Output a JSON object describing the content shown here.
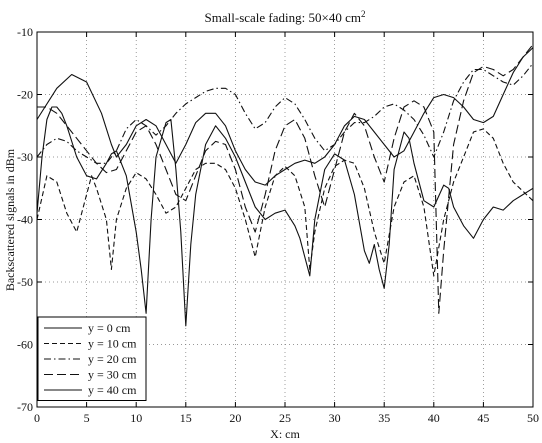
{
  "chart_data": {
    "type": "line",
    "title": "Small-scale fading: 50×40 cm",
    "title_sup": "2",
    "xlabel": "X: cm",
    "ylabel": "Backscattered signals in dBm",
    "xlim": [
      0,
      50
    ],
    "ylim": [
      -70,
      -10
    ],
    "xticks": [
      0,
      5,
      10,
      15,
      20,
      25,
      30,
      35,
      40,
      45,
      50
    ],
    "yticks": [
      -70,
      -60,
      -50,
      -40,
      -30,
      -20,
      -10
    ],
    "grid": true,
    "legend_position": "bottom-left",
    "series": [
      {
        "name": "y = 0 cm",
        "dash": "solid",
        "points": [
          [
            0,
            -24
          ],
          [
            2,
            -19
          ],
          [
            3.5,
            -16.8
          ],
          [
            5,
            -18
          ],
          [
            6.5,
            -23
          ],
          [
            7.5,
            -28
          ],
          [
            8,
            -30
          ],
          [
            9,
            -28
          ],
          [
            10,
            -25
          ],
          [
            11,
            -24
          ],
          [
            12,
            -25
          ],
          [
            13,
            -28
          ],
          [
            14,
            -31
          ],
          [
            15,
            -28
          ],
          [
            16,
            -24.5
          ],
          [
            17,
            -23
          ],
          [
            18,
            -23
          ],
          [
            19,
            -25
          ],
          [
            20,
            -29
          ],
          [
            21,
            -32
          ],
          [
            22,
            -34
          ],
          [
            23,
            -34.5
          ],
          [
            24,
            -33
          ],
          [
            25,
            -32
          ],
          [
            26,
            -31
          ],
          [
            27,
            -30.5
          ],
          [
            28,
            -31
          ],
          [
            29,
            -30
          ],
          [
            30,
            -28
          ],
          [
            31,
            -25
          ],
          [
            32,
            -23.5
          ],
          [
            33,
            -24
          ],
          [
            34,
            -26
          ],
          [
            35,
            -28
          ],
          [
            36,
            -30
          ],
          [
            37,
            -29
          ],
          [
            38,
            -26
          ],
          [
            39,
            -23
          ],
          [
            40,
            -20.5
          ],
          [
            41,
            -20
          ],
          [
            42,
            -20.5
          ],
          [
            43,
            -22
          ],
          [
            44,
            -24
          ],
          [
            45,
            -24.5
          ],
          [
            46,
            -23.5
          ],
          [
            47,
            -20
          ],
          [
            48,
            -16.5
          ],
          [
            49,
            -14
          ],
          [
            50,
            -12.5
          ]
        ]
      },
      {
        "name": "y = 10 cm",
        "dash": "dashed-short",
        "points": [
          [
            0,
            -40
          ],
          [
            1,
            -33
          ],
          [
            2,
            -34
          ],
          [
            3,
            -39
          ],
          [
            4,
            -42
          ],
          [
            5,
            -36
          ],
          [
            5.5,
            -33
          ],
          [
            6,
            -35
          ],
          [
            7,
            -40
          ],
          [
            7.5,
            -48
          ],
          [
            8,
            -40
          ],
          [
            9,
            -35
          ],
          [
            10,
            -32.5
          ],
          [
            11,
            -33.5
          ],
          [
            12,
            -36
          ],
          [
            13,
            -39
          ],
          [
            14,
            -38
          ],
          [
            15,
            -35
          ],
          [
            16,
            -32
          ],
          [
            17,
            -31
          ],
          [
            18,
            -31
          ],
          [
            19,
            -32
          ],
          [
            20,
            -35
          ],
          [
            21,
            -40
          ],
          [
            22,
            -46
          ],
          [
            23,
            -38
          ],
          [
            24,
            -33
          ],
          [
            25,
            -31.5
          ],
          [
            26,
            -33
          ],
          [
            27,
            -38
          ],
          [
            27.5,
            -48
          ],
          [
            28,
            -42
          ],
          [
            29,
            -35
          ],
          [
            30,
            -31.5
          ],
          [
            31,
            -30.5
          ],
          [
            32,
            -31
          ],
          [
            33,
            -35
          ],
          [
            34,
            -42
          ],
          [
            35,
            -47
          ],
          [
            36,
            -38
          ],
          [
            37,
            -34
          ],
          [
            38,
            -33
          ],
          [
            39,
            -38
          ],
          [
            40,
            -49
          ],
          [
            41,
            -40
          ],
          [
            42,
            -34
          ],
          [
            43,
            -30
          ],
          [
            44,
            -26
          ],
          [
            45,
            -25.5
          ],
          [
            46,
            -27
          ],
          [
            47,
            -31
          ],
          [
            48,
            -34
          ],
          [
            49,
            -35.5
          ],
          [
            50,
            -37
          ]
        ]
      },
      {
        "name": "y = 20 cm",
        "dash": "dash-dot",
        "points": [
          [
            0,
            -30
          ],
          [
            1,
            -28
          ],
          [
            2,
            -27
          ],
          [
            3,
            -27.5
          ],
          [
            4,
            -29
          ],
          [
            5,
            -30
          ],
          [
            6,
            -31
          ],
          [
            7,
            -31
          ],
          [
            8,
            -29
          ],
          [
            9,
            -25.5
          ],
          [
            10,
            -24
          ],
          [
            11,
            -25
          ],
          [
            12,
            -26.5
          ],
          [
            13,
            -25
          ],
          [
            14,
            -23
          ],
          [
            15,
            -21.5
          ],
          [
            16,
            -20.5
          ],
          [
            17,
            -19.5
          ],
          [
            18,
            -19
          ],
          [
            19,
            -19
          ],
          [
            20,
            -20
          ],
          [
            21,
            -23
          ],
          [
            22,
            -25.5
          ],
          [
            23,
            -24.5
          ],
          [
            24,
            -22
          ],
          [
            25,
            -20.5
          ],
          [
            26,
            -21.5
          ],
          [
            27,
            -24
          ],
          [
            28,
            -27
          ],
          [
            29,
            -29
          ],
          [
            30,
            -28
          ],
          [
            31,
            -26
          ],
          [
            32,
            -24.5
          ],
          [
            33,
            -24.5
          ],
          [
            34,
            -23.5
          ],
          [
            35,
            -22
          ],
          [
            36,
            -21.5
          ],
          [
            37,
            -22.5
          ],
          [
            38,
            -24
          ],
          [
            39,
            -26.5
          ],
          [
            40,
            -30
          ],
          [
            41,
            -26
          ],
          [
            42,
            -21
          ],
          [
            43,
            -18
          ],
          [
            44,
            -16
          ],
          [
            45,
            -16
          ],
          [
            46,
            -17
          ],
          [
            47,
            -18
          ],
          [
            48,
            -18.5
          ],
          [
            49,
            -17
          ],
          [
            50,
            -15
          ]
        ]
      },
      {
        "name": "y = 30 cm",
        "dash": "dashed-long",
        "points": [
          [
            0,
            -22
          ],
          [
            1,
            -22
          ],
          [
            2,
            -23
          ],
          [
            3,
            -25
          ],
          [
            4,
            -27
          ],
          [
            5,
            -29
          ],
          [
            6,
            -31
          ],
          [
            7,
            -32.5
          ],
          [
            8,
            -32
          ],
          [
            9,
            -29
          ],
          [
            10,
            -26
          ],
          [
            11,
            -25
          ],
          [
            12,
            -28
          ],
          [
            13,
            -32
          ],
          [
            14,
            -36
          ],
          [
            15,
            -37
          ],
          [
            16,
            -33
          ],
          [
            17,
            -29
          ],
          [
            18,
            -27.5
          ],
          [
            19,
            -28
          ],
          [
            20,
            -32
          ],
          [
            21,
            -38
          ],
          [
            22,
            -42
          ],
          [
            23,
            -36
          ],
          [
            24,
            -29
          ],
          [
            25,
            -25
          ],
          [
            26,
            -24
          ],
          [
            27,
            -27
          ],
          [
            28,
            -33
          ],
          [
            29,
            -38
          ],
          [
            30,
            -32
          ],
          [
            31,
            -26
          ],
          [
            32,
            -23
          ],
          [
            33,
            -25
          ],
          [
            34,
            -30
          ],
          [
            35,
            -34
          ],
          [
            36,
            -27
          ],
          [
            37,
            -22
          ],
          [
            38,
            -21
          ],
          [
            39,
            -22
          ],
          [
            40,
            -26
          ],
          [
            40.5,
            -55
          ],
          [
            41,
            -45
          ],
          [
            42,
            -28
          ],
          [
            43,
            -21
          ],
          [
            44,
            -16.5
          ],
          [
            45,
            -15.5
          ],
          [
            46,
            -16
          ],
          [
            47,
            -17
          ],
          [
            48,
            -16
          ],
          [
            49,
            -14
          ],
          [
            50,
            -12
          ]
        ]
      },
      {
        "name": "y = 40 cm",
        "dash": "solid",
        "points": [
          [
            0,
            -39
          ],
          [
            0.5,
            -30
          ],
          [
            1,
            -24
          ],
          [
            1.5,
            -22
          ],
          [
            2,
            -22
          ],
          [
            2.5,
            -23
          ],
          [
            3,
            -25
          ],
          [
            4,
            -30
          ],
          [
            5,
            -33
          ],
          [
            6,
            -33.5
          ],
          [
            7,
            -31
          ],
          [
            7.5,
            -29.5
          ],
          [
            8,
            -29
          ],
          [
            9,
            -33
          ],
          [
            10,
            -42
          ],
          [
            10.5,
            -48
          ],
          [
            11,
            -55
          ],
          [
            11.5,
            -40
          ],
          [
            12,
            -30
          ],
          [
            13,
            -24.5
          ],
          [
            13.5,
            -24
          ],
          [
            14,
            -32
          ],
          [
            14.5,
            -42
          ],
          [
            15,
            -57
          ],
          [
            15.5,
            -44
          ],
          [
            16,
            -36
          ],
          [
            17,
            -28
          ],
          [
            18,
            -25
          ],
          [
            19,
            -27
          ],
          [
            20,
            -30
          ],
          [
            21,
            -34
          ],
          [
            22,
            -38
          ],
          [
            23,
            -40
          ],
          [
            24,
            -39
          ],
          [
            25,
            -38.5
          ],
          [
            26,
            -41
          ],
          [
            26.5,
            -43
          ],
          [
            27,
            -46
          ],
          [
            27.5,
            -49
          ],
          [
            28,
            -40
          ],
          [
            29,
            -32
          ],
          [
            30,
            -29.5
          ],
          [
            31,
            -30.5
          ],
          [
            32,
            -36
          ],
          [
            33,
            -45
          ],
          [
            33.5,
            -47
          ],
          [
            34,
            -44
          ],
          [
            34.5,
            -48
          ],
          [
            35,
            -51
          ],
          [
            35.5,
            -44
          ],
          [
            36,
            -32
          ],
          [
            37,
            -26
          ],
          [
            37.5,
            -27
          ],
          [
            38,
            -31
          ],
          [
            39,
            -37
          ],
          [
            40,
            -38
          ],
          [
            41,
            -34.5
          ],
          [
            41.5,
            -35
          ],
          [
            42,
            -38
          ],
          [
            43,
            -41
          ],
          [
            44,
            -43
          ],
          [
            45,
            -40
          ],
          [
            46,
            -38
          ],
          [
            47,
            -38.5
          ],
          [
            48,
            -37
          ],
          [
            49,
            -36
          ],
          [
            50,
            -35
          ]
        ]
      }
    ]
  }
}
